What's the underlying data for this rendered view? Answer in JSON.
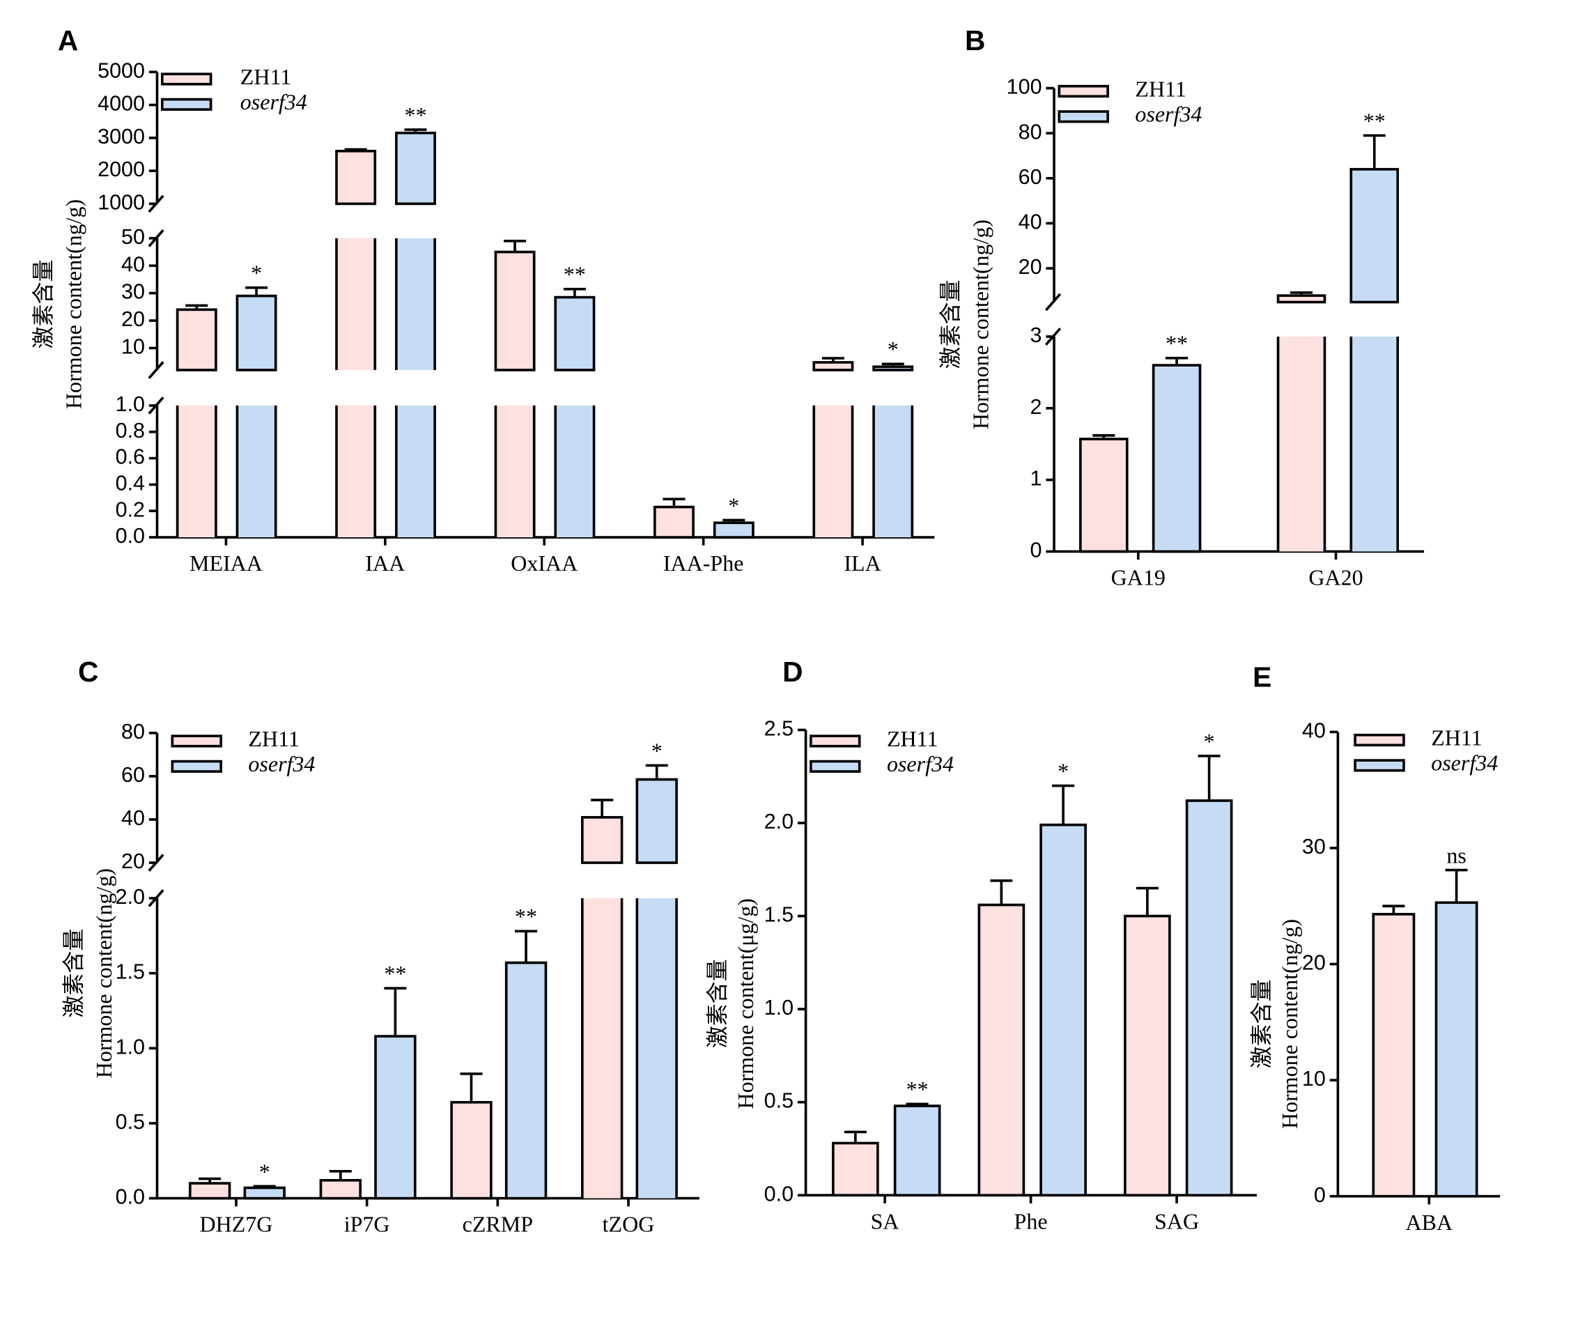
{
  "chart_data": [
    {
      "type": "bar",
      "panel_label": "A",
      "ylabel": [
        "激素含量",
        "Hormone content(ng/g)"
      ],
      "categories": [
        "MEIAA",
        "IAA",
        "OxIAA",
        "IAA-Phe",
        "ILA"
      ],
      "y_segments": [
        {
          "ylim": [
            0,
            1
          ],
          "yticks": [
            {
              "value": 0,
              "label": "0.0"
            },
            0.2,
            0.4,
            0.6,
            0.8,
            {
              "value": 1,
              "label": "1.0"
            }
          ]
        },
        {
          "ylim": [
            2,
            50
          ],
          "yticks": [
            10,
            20,
            30,
            40,
            50
          ]
        },
        {
          "ylim": [
            1000,
            5000
          ],
          "yticks": [
            1000,
            2000,
            3000,
            4000,
            5000
          ]
        }
      ],
      "series": [
        {
          "name": "ZH11",
          "color": "#fde0e0",
          "values": [
            24,
            2600,
            45,
            0.23,
            4.8
          ],
          "errors": [
            1.5,
            50,
            4,
            0.06,
            1.5
          ]
        },
        {
          "name": "oserf34",
          "color": "#c6dcf5",
          "italic": true,
          "values": [
            29,
            3150,
            28.5,
            0.11,
            3.2
          ],
          "errors": [
            3,
            100,
            3,
            0.02,
            1
          ],
          "annotations": [
            "*",
            "**",
            "**",
            "*",
            "*"
          ]
        }
      ]
    },
    {
      "type": "bar",
      "panel_label": "B",
      "ylabel": [
        "激素含量",
        "Hormone content(ng/g)"
      ],
      "categories": [
        "GA19",
        "GA20"
      ],
      "y_segments": [
        {
          "ylim": [
            0,
            3
          ],
          "yticks": [
            0,
            1,
            2,
            3
          ]
        },
        {
          "ylim": [
            5,
            100
          ],
          "yticks": [
            20,
            40,
            60,
            80,
            100
          ]
        }
      ],
      "series": [
        {
          "name": "ZH11",
          "color": "#fde0e0",
          "values": [
            1.57,
            7.9
          ],
          "errors": [
            0.05,
            1.3
          ]
        },
        {
          "name": "oserf34",
          "color": "#c6dcf5",
          "italic": true,
          "values": [
            2.6,
            64
          ],
          "errors": [
            0.1,
            15
          ],
          "annotations": [
            "**",
            "**"
          ]
        }
      ]
    },
    {
      "type": "bar",
      "panel_label": "C",
      "ylabel": [
        "激素含量",
        "Hormone content(ng/g)"
      ],
      "categories": [
        "DHZ7G",
        "iP7G",
        "cZRMP",
        "tZOG"
      ],
      "y_segments": [
        {
          "ylim": [
            0,
            2
          ],
          "yticks": [
            {
              "value": 0,
              "label": "0.0"
            },
            0.5,
            {
              "value": 1,
              "label": "1.0"
            },
            1.5,
            {
              "value": 2,
              "label": "2.0"
            }
          ]
        },
        {
          "ylim": [
            20,
            80
          ],
          "yticks": [
            20,
            40,
            60,
            80
          ]
        }
      ],
      "series": [
        {
          "name": "ZH11",
          "color": "#fde0e0",
          "values": [
            0.1,
            0.12,
            0.64,
            41
          ],
          "errors": [
            0.03,
            0.06,
            0.19,
            8
          ]
        },
        {
          "name": "oserf34",
          "color": "#c6dcf5",
          "italic": true,
          "values": [
            0.07,
            1.08,
            1.57,
            58.5
          ],
          "errors": [
            0.01,
            0.32,
            0.21,
            6.5
          ],
          "annotations": [
            "*",
            "**",
            "**",
            "*"
          ]
        }
      ]
    },
    {
      "type": "bar",
      "panel_label": "D",
      "ylabel": [
        "激素含量",
        "Hormone content(μg/g)"
      ],
      "categories": [
        "SA",
        "Phe",
        "SAG"
      ],
      "ylim": [
        0,
        2.5
      ],
      "yticks": [
        {
          "value": 0,
          "label": "0.0"
        },
        0.5,
        {
          "value": 1,
          "label": "1.0"
        },
        1.5,
        {
          "value": 2,
          "label": "2.0"
        },
        2.5
      ],
      "series": [
        {
          "name": "ZH11",
          "color": "#fde0e0",
          "values": [
            0.28,
            1.56,
            1.5
          ],
          "errors": [
            0.06,
            0.13,
            0.15
          ]
        },
        {
          "name": "oserf34",
          "color": "#c6dcf5",
          "italic": true,
          "values": [
            0.48,
            1.99,
            2.12
          ],
          "errors": [
            0.01,
            0.21,
            0.24
          ],
          "annotations": [
            "**",
            "*",
            "*"
          ]
        }
      ]
    },
    {
      "type": "bar",
      "panel_label": "E",
      "ylabel": [
        "激素含量",
        "Hormone content(ng/g)"
      ],
      "categories": [
        "ABA"
      ],
      "ylim": [
        0,
        40
      ],
      "yticks": [
        0,
        10,
        20,
        30,
        40
      ],
      "series": [
        {
          "name": "ZH11",
          "color": "#fde0e0",
          "values": [
            24.3
          ],
          "errors": [
            0.7
          ]
        },
        {
          "name": "oserf34",
          "color": "#c6dcf5",
          "italic": true,
          "values": [
            25.3
          ],
          "errors": [
            2.8
          ],
          "annotations": [
            "ns"
          ]
        }
      ]
    }
  ]
}
